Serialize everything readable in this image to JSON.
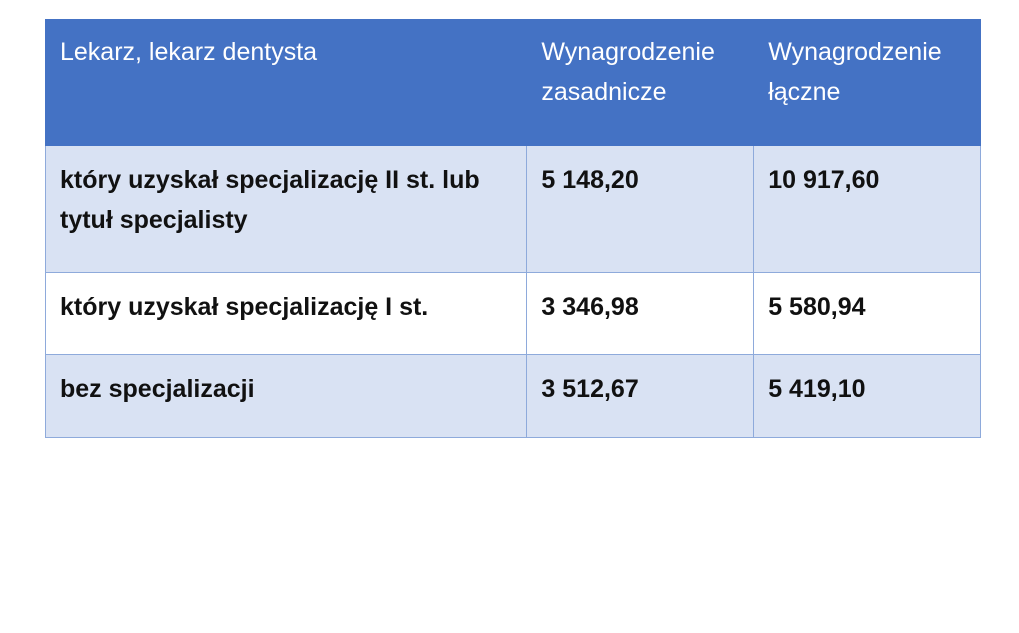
{
  "table": {
    "headers": [
      "Lekarz, lekarz dentysta",
      "Wynagrodzenie zasadnicze",
      "Wynagrodzenie łączne"
    ],
    "rows": [
      [
        "który uzyskał specjalizację II st. lub tytuł specjalisty",
        "5 148,20",
        "10 917,60"
      ],
      [
        "który uzyskał specjalizację I st.",
        "3 346,98",
        "5 580,94"
      ],
      [
        "bez specjalizacji",
        "3 512,67",
        "5 419,10"
      ]
    ]
  },
  "colors": {
    "header": "#4472c4",
    "shaded_row": "#d9e2f3",
    "border": "#8eaadb"
  }
}
